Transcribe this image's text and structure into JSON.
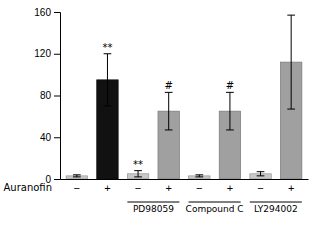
{
  "chart_data": {
    "type": "bar",
    "xlabel": "Auranofin",
    "categories": [
      "−",
      "+",
      "−",
      "+",
      "−",
      "+",
      "−",
      "+"
    ],
    "values": [
      3,
      95,
      5,
      65,
      3,
      65,
      5,
      112
    ],
    "errors": [
      1,
      25,
      3,
      18,
      1,
      18,
      2,
      45
    ],
    "colors": [
      "#c8c8c8",
      "#111111",
      "#c8c8c8",
      "#a0a0a0",
      "#c8c8c8",
      "#a0a0a0",
      "#c8c8c8",
      "#a0a0a0"
    ],
    "annotations": [
      null,
      "**",
      "**",
      "#",
      null,
      "#",
      null,
      null
    ],
    "category_groups": [
      null,
      null,
      "PD98059",
      "PD98059",
      "Compound C",
      "Compound C",
      "LY294002",
      "LY294002"
    ],
    "ylim": [
      0,
      160
    ],
    "yticks": [
      0,
      40,
      80,
      120,
      160
    ],
    "grid": false
  }
}
